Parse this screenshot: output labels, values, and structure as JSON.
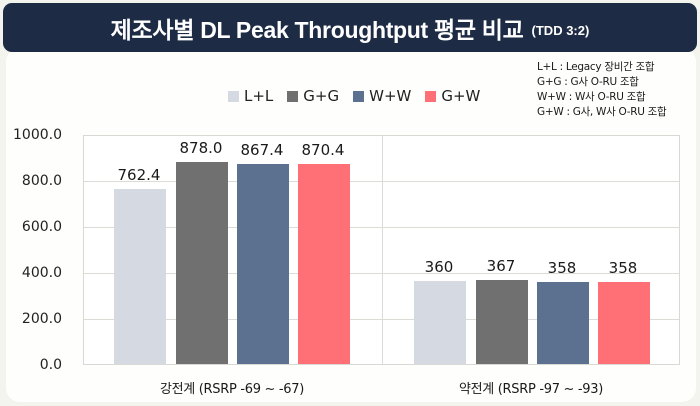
{
  "header": {
    "title": "제조사별 DL Peak Throughtput 평균 비교",
    "subtitle": "(TDD 3:2)"
  },
  "notes": [
    "L+L : Legacy 장비간 조합",
    "G+G : G사 O-RU 조합",
    "W+W : W사 O-RU 조합",
    "G+W : G사, W사 O-RU 조합"
  ],
  "legend": [
    {
      "label": "L+L",
      "color": "#d5d9e2"
    },
    {
      "label": "G+G",
      "color": "#707070"
    },
    {
      "label": "W+W",
      "color": "#5c7190"
    },
    {
      "label": "G+W",
      "color": "#ff7076"
    }
  ],
  "yaxis": {
    "ticks": [
      "1000.0",
      "800.0",
      "600.0",
      "400.0",
      "200.0",
      "0.0"
    ]
  },
  "groups": [
    {
      "label": "강전계 (RSRP -69 ~ -67)",
      "value_labels": [
        "762.4",
        "878.0",
        "867.4",
        "870.4"
      ]
    },
    {
      "label": "약전계 (RSRP -97 ~ -93)",
      "value_labels": [
        "360",
        "367",
        "358",
        "358"
      ]
    }
  ],
  "chart_data": {
    "type": "bar",
    "title": "제조사별 DL Peak Throughtput 평균 비교 (TDD 3:2)",
    "categories": [
      "강전계 (RSRP -69 ~ -67)",
      "약전계 (RSRP -97 ~ -93)"
    ],
    "series": [
      {
        "name": "L+L",
        "values": [
          762.4,
          360
        ],
        "color": "#d5d9e2"
      },
      {
        "name": "G+G",
        "values": [
          878.0,
          367
        ],
        "color": "#707070"
      },
      {
        "name": "W+W",
        "values": [
          867.4,
          358
        ],
        "color": "#5c7190"
      },
      {
        "name": "G+W",
        "values": [
          870.4,
          358
        ],
        "color": "#ff7076"
      }
    ],
    "xlabel": "",
    "ylabel": "",
    "ylim": [
      0,
      1000
    ],
    "yticks": [
      0,
      200,
      400,
      600,
      800,
      1000
    ],
    "grid": true,
    "legend_position": "top",
    "annotations": [
      "L+L : Legacy 장비간 조합",
      "G+G : G사 O-RU 조합",
      "W+W : W사 O-RU 조합",
      "G+W : G사, W사 O-RU 조합"
    ]
  }
}
